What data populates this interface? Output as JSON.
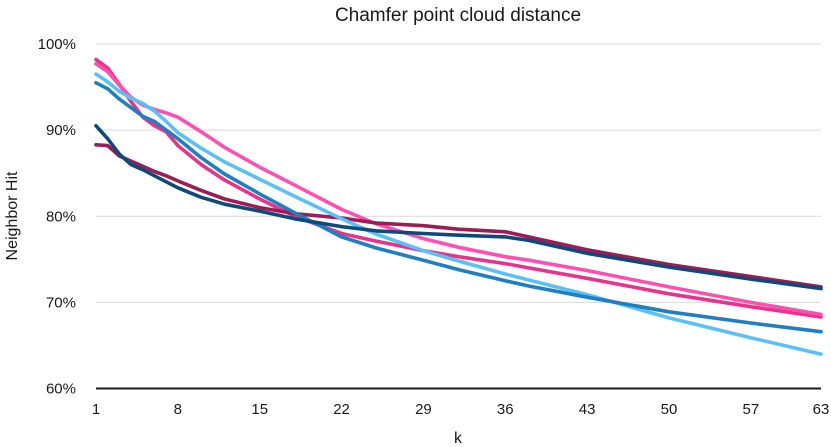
{
  "chart_data": {
    "type": "line",
    "title": "Chamfer point cloud distance",
    "xlabel": "k",
    "ylabel": "Neighbor Hit",
    "xlim": [
      1,
      63
    ],
    "ylim": [
      60,
      100
    ],
    "x_ticks": [
      "1",
      "8",
      "15",
      "22",
      "29",
      "36",
      "43",
      "50",
      "57",
      "63"
    ],
    "y_ticks": [
      "60%",
      "70%",
      "80%",
      "90%",
      "100%"
    ],
    "y_tick_values": [
      60,
      70,
      80,
      90,
      100
    ],
    "grid": true,
    "legend": "none",
    "x": [
      1,
      2,
      3,
      4,
      5,
      6,
      7,
      8,
      10,
      12,
      15,
      18,
      22,
      25,
      29,
      32,
      36,
      38,
      43,
      50,
      57,
      63
    ],
    "series": [
      {
        "color": "#e8338a",
        "values": [
          98.2,
          97.2,
          95.3,
          93.3,
          91.5,
          90.5,
          89.8,
          88.2,
          86.0,
          84.2,
          82.0,
          80.0,
          78.0,
          77.1,
          76.0,
          75.3,
          74.5,
          74.0,
          72.8,
          71.0,
          69.5,
          68.3
        ]
      },
      {
        "color": "#ff4fb0",
        "values": [
          97.7,
          96.8,
          95.2,
          93.8,
          92.9,
          92.4,
          92.0,
          91.5,
          89.8,
          88.0,
          85.7,
          83.6,
          80.8,
          79.1,
          77.4,
          76.4,
          75.3,
          74.9,
          73.7,
          71.8,
          70.0,
          68.6
        ]
      },
      {
        "color": "#9a1d58",
        "values": [
          88.3,
          88.2,
          87.0,
          86.4,
          85.8,
          85.2,
          84.7,
          84.1,
          83.0,
          82.0,
          81.0,
          80.3,
          79.8,
          79.2,
          78.9,
          78.5,
          78.2,
          77.6,
          76.1,
          74.4,
          73.0,
          71.8
        ]
      },
      {
        "color": "#5bc0f5",
        "values": [
          96.5,
          95.6,
          94.5,
          93.7,
          93.1,
          92.2,
          91.0,
          89.7,
          87.9,
          86.3,
          84.3,
          82.3,
          79.7,
          77.9,
          76.0,
          74.8,
          73.3,
          72.6,
          70.9,
          68.2,
          65.9,
          64.0
        ]
      },
      {
        "color": "#1f7fc0",
        "values": [
          95.5,
          94.8,
          93.6,
          92.6,
          91.6,
          91.0,
          90.0,
          89.0,
          86.8,
          84.9,
          82.6,
          80.4,
          77.6,
          76.3,
          74.9,
          73.8,
          72.5,
          71.9,
          70.6,
          68.9,
          67.6,
          66.6
        ]
      },
      {
        "color": "#0d4a78",
        "values": [
          90.5,
          89.0,
          87.2,
          86.0,
          85.4,
          84.7,
          84.0,
          83.3,
          82.2,
          81.4,
          80.6,
          79.7,
          78.8,
          78.3,
          78.0,
          77.8,
          77.6,
          77.2,
          75.7,
          74.1,
          72.7,
          71.6
        ]
      }
    ]
  }
}
